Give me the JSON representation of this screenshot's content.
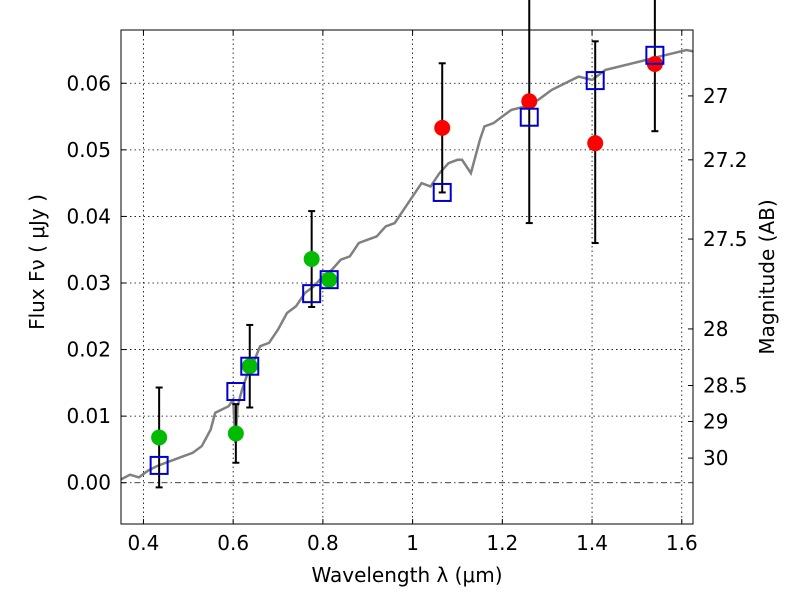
{
  "chart_data": {
    "type": "scatter",
    "xlabel": "Wavelength  λ (μm)",
    "ylabel": "Flux  Fν  ( μJy )",
    "ylabel_right": "Magnitude (AB)",
    "xlim": [
      0.35,
      1.625
    ],
    "ylim": [
      -0.0062,
      0.068
    ],
    "x_ticks": [
      0.4,
      0.6,
      0.8,
      1.0,
      1.2,
      1.4,
      1.6
    ],
    "x_tick_labels": [
      "0.4",
      "0.6",
      "0.8",
      "1",
      "1.2",
      "1.4",
      "1.6"
    ],
    "y_ticks": [
      0.0,
      0.01,
      0.02,
      0.03,
      0.04,
      0.05,
      0.06
    ],
    "y_tick_labels": [
      "0.00",
      "0.01",
      "0.02",
      "0.03",
      "0.04",
      "0.05",
      "0.06"
    ],
    "right_ticks": [
      {
        "flux": 0.0581,
        "label": "27"
      },
      {
        "flux": 0.0485,
        "label": "27.2"
      },
      {
        "flux": 0.0366,
        "label": "27.5"
      },
      {
        "flux": 0.0231,
        "label": "28"
      },
      {
        "flux": 0.0146,
        "label": "28.5"
      },
      {
        "flux": 0.0092,
        "label": "29"
      },
      {
        "flux": 0.0037,
        "label": "30"
      }
    ],
    "grid": true,
    "colors": {
      "model": "#808080",
      "green": "#00bb00",
      "red": "#ff0000",
      "square": "#0000cc",
      "errorbar": "#000000"
    },
    "model_spectrum": {
      "x": [
        0.35,
        0.37,
        0.39,
        0.41,
        0.43,
        0.45,
        0.47,
        0.49,
        0.51,
        0.53,
        0.55,
        0.56,
        0.575,
        0.59,
        0.6,
        0.605,
        0.61,
        0.62,
        0.63,
        0.645,
        0.66,
        0.68,
        0.7,
        0.72,
        0.74,
        0.76,
        0.78,
        0.8,
        0.82,
        0.84,
        0.86,
        0.88,
        0.9,
        0.92,
        0.94,
        0.96,
        0.98,
        1.0,
        1.02,
        1.04,
        1.06,
        1.08,
        1.1,
        1.11,
        1.13,
        1.15,
        1.16,
        1.18,
        1.2,
        1.22,
        1.25,
        1.28,
        1.31,
        1.34,
        1.37,
        1.4,
        1.43,
        1.46,
        1.49,
        1.52,
        1.55,
        1.58,
        1.61,
        1.625
      ],
      "y": [
        0.0005,
        0.0012,
        0.0008,
        0.0018,
        0.0025,
        0.003,
        0.0035,
        0.004,
        0.0045,
        0.0055,
        0.008,
        0.0105,
        0.011,
        0.0115,
        0.0125,
        0.006,
        0.0115,
        0.014,
        0.016,
        0.018,
        0.0205,
        0.021,
        0.023,
        0.0255,
        0.0265,
        0.0285,
        0.0295,
        0.031,
        0.032,
        0.0335,
        0.034,
        0.036,
        0.0365,
        0.037,
        0.0385,
        0.039,
        0.041,
        0.043,
        0.045,
        0.0445,
        0.0465,
        0.048,
        0.0485,
        0.0485,
        0.0465,
        0.0515,
        0.0535,
        0.054,
        0.055,
        0.056,
        0.0565,
        0.0575,
        0.059,
        0.06,
        0.061,
        0.0605,
        0.062,
        0.0625,
        0.063,
        0.0635,
        0.064,
        0.0645,
        0.065,
        0.0648
      ]
    },
    "green_points": [
      {
        "x": 0.435,
        "y": 0.0068,
        "err_lo": 0.0075,
        "err_hi": 0.0075
      },
      {
        "x": 0.606,
        "y": 0.0074,
        "err_lo": 0.0044,
        "err_hi": 0.0044
      },
      {
        "x": 0.637,
        "y": 0.0175,
        "err_lo": 0.0062,
        "err_hi": 0.0062
      },
      {
        "x": 0.775,
        "y": 0.0336,
        "err_lo": 0.0072,
        "err_hi": 0.0072
      },
      {
        "x": 0.814,
        "y": 0.0305,
        "err_lo": 0,
        "err_hi": 0
      }
    ],
    "red_points": [
      {
        "x": 1.066,
        "y": 0.0533,
        "err_lo": 0.0097,
        "err_hi": 0.0097
      },
      {
        "x": 1.26,
        "y": 0.0573,
        "err_lo": 0.0183,
        "err_hi": 0.0183
      },
      {
        "x": 1.407,
        "y": 0.051,
        "err_lo": 0.015,
        "err_hi": 0.0153
      },
      {
        "x": 1.54,
        "y": 0.0629,
        "err_lo": 0.0101,
        "err_hi": 0.0101
      }
    ],
    "model_squares": [
      {
        "x": 0.435,
        "y": 0.0026
      },
      {
        "x": 0.606,
        "y": 0.0137
      },
      {
        "x": 0.637,
        "y": 0.0175
      },
      {
        "x": 0.775,
        "y": 0.0284
      },
      {
        "x": 0.814,
        "y": 0.0305
      },
      {
        "x": 1.066,
        "y": 0.0436
      },
      {
        "x": 1.26,
        "y": 0.0549
      },
      {
        "x": 1.407,
        "y": 0.0604
      },
      {
        "x": 1.54,
        "y": 0.0642
      }
    ]
  }
}
